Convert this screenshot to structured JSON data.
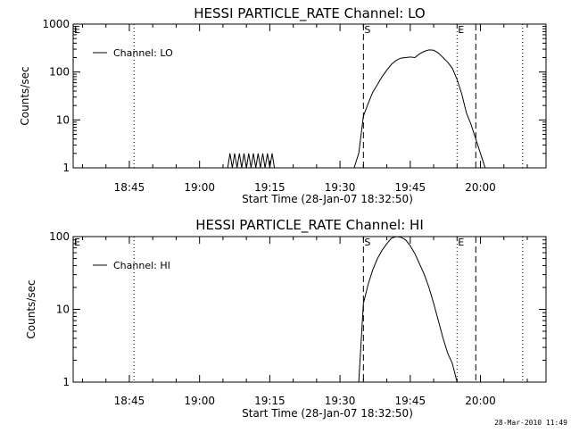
{
  "chart_data": [
    {
      "type": "line",
      "title": "HESSI PARTICLE_RATE Channel: LO",
      "xlabel": "Start Time (28-Jan-07 18:32:50)",
      "ylabel": "Counts/sec",
      "yscale": "log",
      "ylim": [
        1,
        1000
      ],
      "xlim_minutes_from_1830": [
        3,
        104
      ],
      "x_ticks": [
        "18:45",
        "19:00",
        "19:15",
        "19:30",
        "19:45",
        "20:00"
      ],
      "y_ticks": [
        "1",
        "10",
        "100",
        "1000"
      ],
      "legend": {
        "label": "Channel: LO",
        "placement": "top-left"
      },
      "markers": [
        {
          "label": "E",
          "time": "18:33",
          "style": "dotted"
        },
        {
          "label": "",
          "time": "18:46",
          "style": "dotted"
        },
        {
          "label": "S",
          "time": "19:35",
          "style": "dashed"
        },
        {
          "label": "E",
          "time": "19:55",
          "style": "dotted"
        },
        {
          "label": "",
          "time": "19:59",
          "style": "dashed"
        },
        {
          "label": "",
          "time": "20:09",
          "style": "dotted"
        }
      ],
      "series": [
        {
          "name": "Channel: LO",
          "x": [
            "19:06",
            "19:06.5",
            "19:07",
            "19:07.5",
            "19:08",
            "19:08.5",
            "19:09",
            "19:09.5",
            "19:10",
            "19:10.5",
            "19:11",
            "19:11.5",
            "19:12",
            "19:12.5",
            "19:13",
            "19:13.5",
            "19:14",
            "19:14.5",
            "19:15",
            "19:15.5",
            "19:16",
            "19:33",
            "19:34",
            "19:35",
            "19:36",
            "19:37",
            "19:38",
            "19:39",
            "19:40",
            "19:41",
            "19:42",
            "19:43",
            "19:44",
            "19:45",
            "19:46",
            "19:47",
            "19:48",
            "19:49",
            "19:50",
            "19:51",
            "19:52",
            "19:53",
            "19:54",
            "19:55",
            "19:56",
            "19:57",
            "19:58",
            "19:59",
            "20:00",
            "20:01"
          ],
          "y": [
            1,
            2,
            1,
            2,
            1,
            2,
            1,
            2,
            1,
            2,
            1,
            2,
            1,
            2,
            1,
            2,
            1,
            2,
            1,
            2,
            1,
            1,
            2,
            12,
            22,
            38,
            55,
            80,
            110,
            145,
            175,
            195,
            200,
            205,
            200,
            240,
            270,
            290,
            285,
            250,
            200,
            160,
            120,
            70,
            35,
            14,
            8,
            4,
            2,
            1
          ]
        }
      ]
    },
    {
      "type": "line",
      "title": "HESSI PARTICLE_RATE Channel: HI",
      "xlabel": "Start Time (28-Jan-07 18:32:50)",
      "ylabel": "Counts/sec",
      "yscale": "log",
      "ylim": [
        1,
        100
      ],
      "xlim_minutes_from_1830": [
        3,
        104
      ],
      "x_ticks": [
        "18:45",
        "19:00",
        "19:15",
        "19:30",
        "19:45",
        "20:00"
      ],
      "y_ticks": [
        "1",
        "10",
        "100"
      ],
      "legend": {
        "label": "Channel: HI",
        "placement": "top-left"
      },
      "markers": [
        {
          "label": "E",
          "time": "18:33",
          "style": "dotted"
        },
        {
          "label": "",
          "time": "18:46",
          "style": "dotted"
        },
        {
          "label": "S",
          "time": "19:35",
          "style": "dashed"
        },
        {
          "label": "E",
          "time": "19:55",
          "style": "dotted"
        },
        {
          "label": "",
          "time": "19:59",
          "style": "dashed"
        },
        {
          "label": "",
          "time": "20:09",
          "style": "dotted"
        }
      ],
      "series": [
        {
          "name": "Channel: HI",
          "x": [
            "19:34",
            "19:35",
            "19:36",
            "19:37",
            "19:38",
            "19:39",
            "19:40",
            "19:41",
            "19:42",
            "19:43",
            "19:44",
            "19:45",
            "19:46",
            "19:47",
            "19:48",
            "19:49",
            "19:50",
            "19:51",
            "19:52",
            "19:53",
            "19:54",
            "19:55"
          ],
          "y": [
            1,
            12,
            22,
            35,
            50,
            65,
            80,
            95,
            100,
            98,
            90,
            75,
            58,
            42,
            30,
            20,
            12,
            7,
            4,
            2.5,
            1.8,
            1
          ]
        }
      ]
    }
  ],
  "footer": {
    "timestamp": "28-Mar-2010 11:49"
  }
}
